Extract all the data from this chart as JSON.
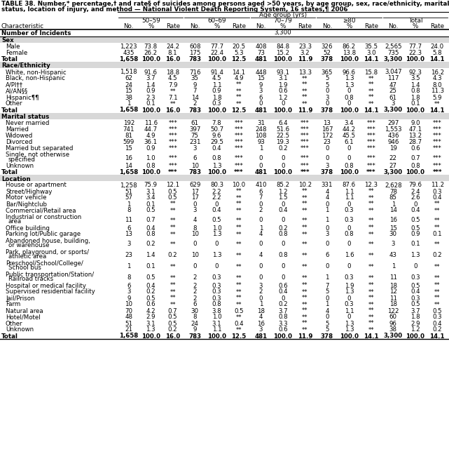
{
  "title_line1": "TABLE 38. Number,* percentage,† and rate§ of suicides among persons aged >50 years, by age group, sex, race/ethnicity, marital",
  "title_line2": "status, location of injury, and method — National Violent Death Reporting System, 16 states,¶ 2006",
  "col_groups": [
    "50–59",
    "60–69",
    "70–79",
    "≥80",
    "Total"
  ],
  "col_headers": [
    "No.",
    "%",
    "Rate"
  ],
  "row_header": "Characteristic",
  "number_of_incidents": "3,300",
  "rows": [
    {
      "label": "Sex",
      "type": "section",
      "data": null
    },
    {
      "label": "Male",
      "type": "data",
      "data": [
        "1,223",
        "73.8",
        "24.2",
        "608",
        "77.7",
        "20.5",
        "408",
        "84.8",
        "23.3",
        "326",
        "86.2",
        "35.5",
        "2,565",
        "77.7",
        "24.0"
      ]
    },
    {
      "label": "Female",
      "type": "data",
      "data": [
        "435",
        "26.2",
        "8.1",
        "175",
        "22.4",
        "5.3",
        "73",
        "15.2",
        "3.2",
        "52",
        "13.8",
        "3.0",
        "735",
        "22.3",
        "5.8"
      ]
    },
    {
      "label": "Total",
      "type": "total",
      "data": [
        "1,658",
        "100.0",
        "16.0",
        "783",
        "100.0",
        "12.5",
        "481",
        "100.0",
        "11.9",
        "378",
        "100.0",
        "14.1",
        "3,300",
        "100.0",
        "14.1"
      ]
    },
    {
      "label": "Race/Ethnicity",
      "type": "section",
      "data": null
    },
    {
      "label": "White, non-Hispanic",
      "type": "data",
      "data": [
        "1,518",
        "91.6",
        "18.8",
        "716",
        "91.4",
        "14.1",
        "448",
        "93.1",
        "13.3",
        "365",
        "96.6",
        "15.8",
        "3,047",
        "92.3",
        "16.2"
      ]
    },
    {
      "label": "Black, non-Hispanic",
      "type": "data",
      "data": [
        "62",
        "3.7",
        "4.5",
        "35",
        "4.5",
        "4.9",
        "15",
        "3.1",
        "**",
        "5",
        "1.3",
        "**",
        "117",
        "3.5",
        "4.3"
      ]
    },
    {
      "label": "A/PI††",
      "type": "data",
      "data": [
        "24",
        "1.4",
        "7.9",
        "9",
        "1.1",
        "**",
        "9",
        "1.9",
        "**",
        "5",
        "1.3",
        "**",
        "47",
        "1.4",
        "8.0"
      ]
    },
    {
      "label": "AI/AN§§",
      "type": "data",
      "data": [
        "15",
        "0.9",
        "**",
        "7",
        "0.9",
        "**",
        "3",
        "0.6",
        "**",
        "0",
        "0",
        "**",
        "25",
        "0.8",
        "11.3"
      ]
    },
    {
      "label": "Hispanic¶¶",
      "type": "data",
      "data": [
        "38",
        "2.3",
        "7.1",
        "14",
        "1.8",
        "**",
        "6",
        "1.2",
        "**",
        "3",
        "0.8",
        "**",
        "61",
        "1.8",
        "5.9"
      ]
    },
    {
      "label": "Other",
      "type": "data",
      "data": [
        "1",
        "0.1",
        "**",
        "2",
        "0.3",
        "**",
        "0",
        "0",
        "**",
        "0",
        "0",
        "**",
        "3",
        "0.1",
        "**"
      ]
    },
    {
      "label": "Total",
      "type": "total",
      "data": [
        "1,658",
        "100.0",
        "16.0",
        "783",
        "100.0",
        "12.5",
        "481",
        "100.0",
        "11.9",
        "378",
        "100.0",
        "14.1",
        "3,300",
        "100.0",
        "14.1"
      ]
    },
    {
      "label": "Marital status",
      "type": "section",
      "data": null
    },
    {
      "label": "Never married",
      "type": "data",
      "data": [
        "192",
        "11.6",
        "***",
        "61",
        "7.8",
        "***",
        "31",
        "6.4",
        "***",
        "13",
        "3.4",
        "***",
        "297",
        "9.0",
        "***"
      ]
    },
    {
      "label": "Married",
      "type": "data",
      "data": [
        "741",
        "44.7",
        "***",
        "397",
        "50.7",
        "***",
        "248",
        "51.6",
        "***",
        "167",
        "44.2",
        "***",
        "1,553",
        "47.1",
        "***"
      ]
    },
    {
      "label": "Widowed",
      "type": "data",
      "data": [
        "81",
        "4.9",
        "***",
        "75",
        "9.6",
        "***",
        "108",
        "22.5",
        "***",
        "172",
        "45.5",
        "***",
        "436",
        "13.2",
        "***"
      ]
    },
    {
      "label": "Divorced",
      "type": "data",
      "data": [
        "599",
        "36.1",
        "***",
        "231",
        "29.5",
        "***",
        "93",
        "19.3",
        "***",
        "23",
        "6.1",
        "***",
        "946",
        "28.7",
        "***"
      ]
    },
    {
      "label": "Married but separated",
      "type": "data",
      "data": [
        "15",
        "0.9",
        "***",
        "3",
        "0.4",
        "***",
        "1",
        "0.2",
        "***",
        "0",
        "0",
        "***",
        "19",
        "0.6",
        "***"
      ]
    },
    {
      "label": "Single, not otherwise\nspecified",
      "type": "data2",
      "data": [
        "16",
        "1.0",
        "***",
        "6",
        "0.8",
        "***",
        "0",
        "0",
        "***",
        "0",
        "0",
        "***",
        "22",
        "0.7",
        "***"
      ]
    },
    {
      "label": "Unknown",
      "type": "data",
      "data": [
        "14",
        "0.8",
        "***",
        "10",
        "1.3",
        "***",
        "0",
        "0",
        "***",
        "3",
        "0.8",
        "***",
        "27",
        "0.8",
        "***"
      ]
    },
    {
      "label": "Total",
      "type": "total",
      "data": [
        "1,658",
        "100.0",
        "***",
        "783",
        "100.0",
        "***",
        "481",
        "100.0",
        "***",
        "378",
        "100.0",
        "***",
        "3,300",
        "100.0",
        "***"
      ]
    },
    {
      "label": "Location",
      "type": "section",
      "data": null
    },
    {
      "label": "House or apartment",
      "type": "data",
      "data": [
        "1,258",
        "75.9",
        "12.1",
        "629",
        "80.3",
        "10.0",
        "410",
        "85.2",
        "10.2",
        "331",
        "87.6",
        "12.3",
        "2,628",
        "79.6",
        "11.2"
      ]
    },
    {
      "label": "Street/Highway",
      "type": "data",
      "data": [
        "51",
        "3.1",
        "0.5",
        "17",
        "2.2",
        "**",
        "6",
        "1.2",
        "**",
        "4",
        "1.1",
        "**",
        "78",
        "2.4",
        "0.3"
      ]
    },
    {
      "label": "Motor vehicle",
      "type": "data",
      "data": [
        "57",
        "3.4",
        "0.5",
        "17",
        "2.2",
        "**",
        "7",
        "1.5",
        "**",
        "4",
        "1.1",
        "**",
        "85",
        "2.6",
        "0.4"
      ]
    },
    {
      "label": "Bar/Nightclub",
      "type": "data",
      "data": [
        "1",
        "0.1",
        "**",
        "0",
        "0",
        "**",
        "0",
        "0",
        "**",
        "0",
        "0",
        "**",
        "1",
        "0",
        "**"
      ]
    },
    {
      "label": "Commercial/Retail area",
      "type": "data",
      "data": [
        "8",
        "0.5",
        "**",
        "3",
        "0.4",
        "**",
        "2",
        "0.4",
        "**",
        "1",
        "0.3",
        "**",
        "14",
        "0.4",
        "**"
      ]
    },
    {
      "label": "Industrial or construction\narea",
      "type": "data2",
      "data": [
        "11",
        "0.7",
        "**",
        "4",
        "0.5",
        "**",
        "0",
        "0",
        "**",
        "1",
        "0.3",
        "**",
        "16",
        "0.5",
        "**"
      ]
    },
    {
      "label": "Office building",
      "type": "data",
      "data": [
        "6",
        "0.4",
        "**",
        "8",
        "1.0",
        "**",
        "1",
        "0.2",
        "**",
        "0",
        "0",
        "**",
        "15",
        "0.5",
        "**"
      ]
    },
    {
      "label": "Parking lot/Public garage",
      "type": "data",
      "data": [
        "13",
        "0.8",
        "**",
        "10",
        "1.3",
        "**",
        "4",
        "0.8",
        "**",
        "3",
        "0.8",
        "**",
        "30",
        "0.9",
        "0.1"
      ]
    },
    {
      "label": "Abandoned house, building,\nor warehouse",
      "type": "data2",
      "data": [
        "3",
        "0.2",
        "**",
        "0",
        "0",
        "**",
        "0",
        "0",
        "**",
        "0",
        "0",
        "**",
        "3",
        "0.1",
        "**"
      ]
    },
    {
      "label": "Park, playground, or sports/\nathletic area",
      "type": "data2",
      "data": [
        "23",
        "1.4",
        "0.2",
        "10",
        "1.3",
        "**",
        "4",
        "0.8",
        "**",
        "6",
        "1.6",
        "**",
        "43",
        "1.3",
        "0.2"
      ]
    },
    {
      "label": "Preschool/School/College/\nSchool bus",
      "type": "data2",
      "data": [
        "1",
        "0.1",
        "**",
        "0",
        "0",
        "**",
        "0",
        "0",
        "**",
        "0",
        "0",
        "**",
        "1",
        "0",
        "**"
      ]
    },
    {
      "label": "Public transportation/Station/\nRailroad tracks",
      "type": "data2",
      "data": [
        "8",
        "0.5",
        "**",
        "2",
        "0.3",
        "**",
        "0",
        "0",
        "**",
        "1",
        "0.3",
        "**",
        "11",
        "0.3",
        "**"
      ]
    },
    {
      "label": "Hospital or medical facility",
      "type": "data",
      "data": [
        "6",
        "0.4",
        "**",
        "2",
        "0.3",
        "**",
        "3",
        "0.6",
        "**",
        "7",
        "1.9",
        "**",
        "18",
        "0.5",
        "**"
      ]
    },
    {
      "label": "Supervised residential facility",
      "type": "data",
      "data": [
        "3",
        "0.2",
        "**",
        "2",
        "0.3",
        "**",
        "2",
        "0.4",
        "**",
        "5",
        "1.3",
        "**",
        "12",
        "0.4",
        "**"
      ]
    },
    {
      "label": "Jail/Prison",
      "type": "data",
      "data": [
        "9",
        "0.5",
        "**",
        "2",
        "0.3",
        "**",
        "0",
        "0",
        "**",
        "0",
        "0",
        "**",
        "11",
        "0.3",
        "**"
      ]
    },
    {
      "label": "Farm",
      "type": "data",
      "data": [
        "10",
        "0.6",
        "**",
        "6",
        "0.8",
        "**",
        "1",
        "0.2",
        "**",
        "1",
        "0.3",
        "**",
        "18",
        "0.5",
        "**"
      ]
    },
    {
      "label": "Natural area",
      "type": "data",
      "data": [
        "70",
        "4.2",
        "0.7",
        "30",
        "3.8",
        "0.5",
        "18",
        "3.7",
        "**",
        "4",
        "1.1",
        "**",
        "122",
        "3.7",
        "0.5"
      ]
    },
    {
      "label": "Hotel/Motel",
      "type": "data",
      "data": [
        "48",
        "2.9",
        "0.5",
        "8",
        "1.0",
        "**",
        "4",
        "0.8",
        "**",
        "0",
        "0",
        "**",
        "60",
        "1.8",
        "0.3"
      ]
    },
    {
      "label": "Other",
      "type": "data",
      "data": [
        "51",
        "3.1",
        "0.5",
        "24",
        "3.1",
        "0.4",
        "16",
        "3.3",
        "**",
        "5",
        "1.3",
        "**",
        "96",
        "2.9",
        "0.4"
      ]
    },
    {
      "label": "Unknown",
      "type": "data",
      "data": [
        "21",
        "1.3",
        "0.2",
        "9",
        "1.1",
        "**",
        "3",
        "0.6",
        "**",
        "5",
        "1.3",
        "**",
        "38",
        "1.2",
        "0.2"
      ]
    },
    {
      "label": "Total",
      "type": "total",
      "data": [
        "1,658",
        "100.0",
        "16.0",
        "783",
        "100.0",
        "12.5",
        "481",
        "100.0",
        "11.9",
        "378",
        "100.0",
        "14.1",
        "3,300",
        "100.0",
        "14.1"
      ]
    }
  ]
}
